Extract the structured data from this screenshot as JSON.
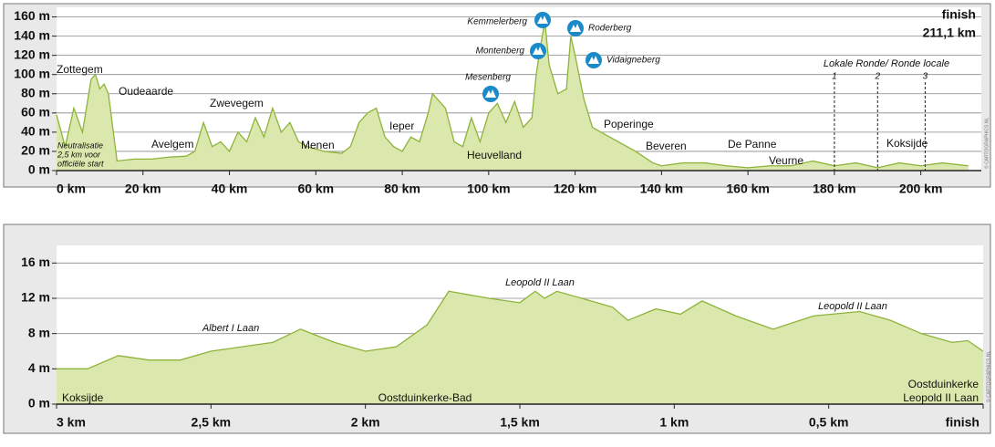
{
  "chart_data": [
    {
      "type": "area",
      "color": "#8db33a",
      "fill": "#dbe8ad",
      "x": [
        0,
        2,
        4,
        6,
        8,
        9,
        10,
        11,
        12,
        14,
        18,
        22,
        26,
        30,
        32,
        34,
        36,
        38,
        40,
        42,
        44,
        46,
        48,
        50,
        52,
        54,
        56,
        58,
        62,
        66,
        68,
        70,
        72,
        74,
        76,
        78,
        80,
        82,
        84,
        86,
        87,
        88,
        90,
        92,
        94,
        96,
        98,
        100,
        102,
        104,
        106,
        108,
        110,
        111,
        112,
        113,
        114,
        116,
        118,
        119,
        120,
        122,
        124,
        126,
        130,
        134,
        138,
        140,
        145,
        150,
        155,
        160,
        165,
        170,
        175,
        180,
        185,
        190,
        195,
        200,
        205,
        211
      ],
      "values": [
        58,
        25,
        65,
        40,
        95,
        100,
        85,
        90,
        80,
        10,
        12,
        12,
        14,
        15,
        20,
        50,
        25,
        30,
        20,
        40,
        30,
        55,
        35,
        65,
        40,
        50,
        30,
        25,
        20,
        18,
        25,
        50,
        60,
        65,
        35,
        25,
        20,
        35,
        30,
        60,
        80,
        75,
        65,
        30,
        25,
        55,
        30,
        60,
        70,
        50,
        72,
        45,
        55,
        100,
        130,
        155,
        110,
        80,
        85,
        140,
        120,
        75,
        45,
        40,
        30,
        20,
        8,
        5,
        8,
        8,
        5,
        3,
        5,
        5,
        10,
        5,
        8,
        3,
        8,
        5,
        8,
        5
      ],
      "xlim": [
        0,
        214
      ],
      "ylim": [
        0,
        170
      ],
      "xticks": [
        {
          "value": 0,
          "label": "0 km"
        },
        {
          "value": 20,
          "label": "20 km"
        },
        {
          "value": 40,
          "label": "40 km"
        },
        {
          "value": 60,
          "label": "60 km"
        },
        {
          "value": 80,
          "label": "80 km"
        },
        {
          "value": 100,
          "label": "100 km"
        },
        {
          "value": 120,
          "label": "120 km"
        },
        {
          "value": 140,
          "label": "140 km"
        },
        {
          "value": 160,
          "label": "160 km"
        },
        {
          "value": 180,
          "label": "180 km"
        },
        {
          "value": 200,
          "label": "200 km"
        }
      ],
      "yticks": [
        {
          "value": 0,
          "label": "0 m"
        },
        {
          "value": 20,
          "label": "20 m"
        },
        {
          "value": 40,
          "label": "40 m"
        },
        {
          "value": 60,
          "label": "60 m"
        },
        {
          "value": 80,
          "label": "80 m"
        },
        {
          "value": 100,
          "label": "100 m"
        },
        {
          "value": 120,
          "label": "120 m"
        },
        {
          "value": 140,
          "label": "140 m"
        },
        {
          "value": 160,
          "label": "160 m"
        }
      ],
      "grid": true,
      "annotations": [
        "Zottegem",
        "Oudeaarde",
        "Zwevegem",
        "Avelgem",
        "Menen",
        "Ieper",
        "Heuvelland",
        "Poperinge",
        "Beveren",
        "De Panne",
        "Veurne",
        "Koksijde"
      ],
      "climbs": [
        "Kemmelerberg",
        "Roderberg",
        "Montenberg",
        "Vidaigneberg",
        "Mesenberg"
      ],
      "note": [
        "Neutralisatie",
        "2,5 km voor",
        "officiële start"
      ],
      "laps_title": "Lokale Ronde/ Ronde locale",
      "laps": [
        {
          "label": "1",
          "km": 180
        },
        {
          "label": "2",
          "km": 190
        },
        {
          "label": "3",
          "km": 201
        }
      ],
      "finish": "finish",
      "distance": "211,1 km",
      "copyright": "© CARTOGRAPHICS.NL"
    },
    {
      "type": "area",
      "color": "#8db33a",
      "fill": "#dbe8ad",
      "x": [
        3,
        2.9,
        2.8,
        2.7,
        2.6,
        2.5,
        2.4,
        2.3,
        2.21,
        2.1,
        2,
        1.9,
        1.8,
        1.73,
        1.6,
        1.5,
        1.45,
        1.42,
        1.38,
        1.3,
        1.2,
        1.15,
        1.06,
        0.98,
        0.91,
        0.8,
        0.68,
        0.55,
        0.4,
        0.3,
        0.2,
        0.1,
        0.05,
        0
      ],
      "values": [
        4,
        4,
        5.5,
        5,
        5,
        6,
        6.5,
        7,
        8.5,
        7,
        6,
        6.5,
        9,
        12.8,
        12,
        11.5,
        12.8,
        12,
        12.8,
        12,
        11,
        9.5,
        10.8,
        10.2,
        11.7,
        10,
        8.5,
        10,
        10.5,
        9.5,
        8,
        7,
        7.2,
        6
      ],
      "xlim": [
        3,
        0
      ],
      "ylim": [
        0,
        18
      ],
      "xticks": [
        {
          "value": 3,
          "label": "3 km"
        },
        {
          "value": 2.5,
          "label": "2,5 km"
        },
        {
          "value": 2,
          "label": "2 km"
        },
        {
          "value": 1.5,
          "label": "1,5 km"
        },
        {
          "value": 1,
          "label": "1 km"
        },
        {
          "value": 0.5,
          "label": "0,5 km"
        },
        {
          "value": 0,
          "label": "finish"
        }
      ],
      "yticks": [
        {
          "value": 0,
          "label": "0 m"
        },
        {
          "value": 4,
          "label": "4 m"
        },
        {
          "value": 8,
          "label": "8 m"
        },
        {
          "value": 12,
          "label": "12 m"
        },
        {
          "value": 16,
          "label": "16 m"
        }
      ],
      "grid": true,
      "annotations": [
        "Koksijde",
        "Albert I Laan",
        "Oostduinkerke-Bad",
        "Leopold II Laan",
        "Leopold II Laan",
        "Oostduinkerke",
        "Leopold II Laan"
      ],
      "copyright": "© CARTOGRAPHICS.NL"
    }
  ]
}
